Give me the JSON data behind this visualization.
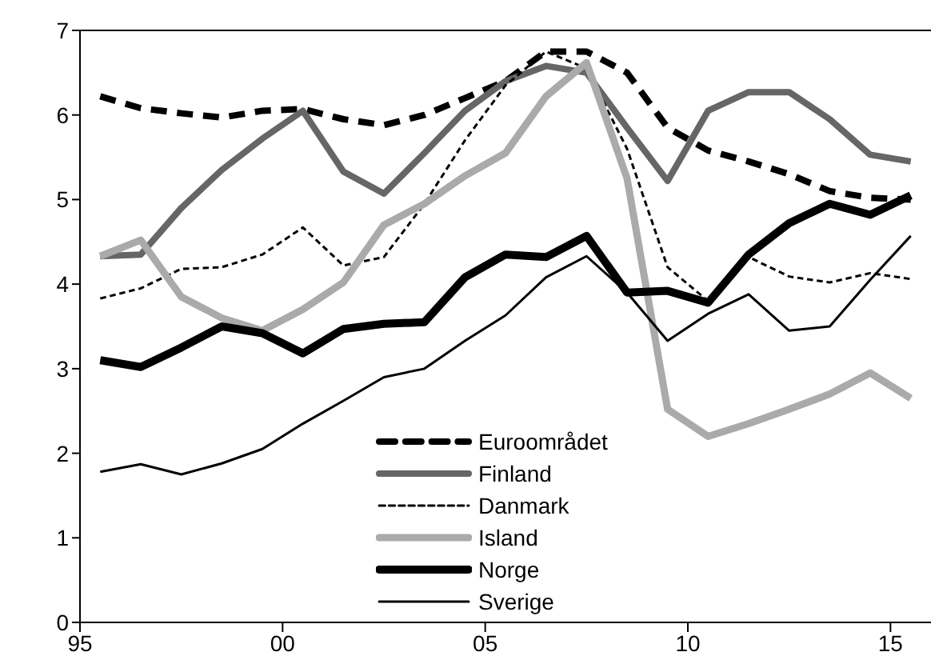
{
  "chart_data": {
    "type": "line",
    "x": [
      1995.5,
      1996.5,
      1997.5,
      1998.5,
      1999.5,
      2000.5,
      2001.5,
      2002.5,
      2003.5,
      2004.5,
      2005.5,
      2006.5,
      2007.5,
      2008.5,
      2009.5,
      2010.5,
      2011.5,
      2012.5,
      2013.5,
      2014.5,
      2015.5
    ],
    "series": [
      {
        "name": "Euroområdet",
        "color": "#000000",
        "line_style": "dashed",
        "values": [
          6.22,
          6.08,
          6.02,
          5.97,
          6.05,
          6.07,
          5.95,
          5.88,
          6.0,
          6.2,
          6.4,
          6.75,
          6.75,
          6.5,
          5.85,
          5.58,
          5.45,
          5.3,
          5.1,
          5.02,
          5.0
        ]
      },
      {
        "name": "Finland",
        "color": "#666666",
        "line_style": "solid",
        "values": [
          4.33,
          4.35,
          4.9,
          5.35,
          5.72,
          6.05,
          5.33,
          5.07,
          5.55,
          6.05,
          6.4,
          6.58,
          6.5,
          5.85,
          5.22,
          6.05,
          6.27,
          6.27,
          5.95,
          5.53,
          5.45
        ]
      },
      {
        "name": "Danmark",
        "color": "#000000",
        "line_style": "dashed",
        "values": [
          3.83,
          3.95,
          4.18,
          4.2,
          4.35,
          4.67,
          4.22,
          4.32,
          4.95,
          5.7,
          6.35,
          6.75,
          6.55,
          5.6,
          4.2,
          3.8,
          4.32,
          4.09,
          4.02,
          4.13,
          4.06
        ]
      },
      {
        "name": "Island",
        "color": "#aaaaaa",
        "line_style": "solid",
        "values": [
          4.33,
          4.52,
          3.85,
          3.6,
          3.45,
          3.7,
          4.02,
          4.7,
          4.95,
          5.28,
          5.55,
          6.22,
          6.62,
          5.25,
          2.52,
          2.2,
          2.35,
          2.52,
          2.7,
          2.95,
          2.65
        ]
      },
      {
        "name": "Norge",
        "color": "#000000",
        "line_style": "solid",
        "values": [
          3.1,
          3.02,
          3.25,
          3.5,
          3.42,
          3.18,
          3.47,
          3.53,
          3.55,
          4.08,
          4.35,
          4.32,
          4.57,
          3.9,
          3.92,
          3.78,
          4.35,
          4.72,
          4.95,
          4.82,
          5.05
        ]
      },
      {
        "name": "Sverige",
        "color": "#000000",
        "line_style": "solid",
        "values": [
          1.78,
          1.87,
          1.75,
          1.88,
          2.05,
          2.35,
          2.62,
          2.9,
          3.0,
          3.33,
          3.63,
          4.08,
          4.33,
          3.9,
          3.33,
          3.65,
          3.88,
          3.45,
          3.5,
          4.05,
          4.57
        ]
      }
    ],
    "xlim": [
      1995,
      2016
    ],
    "xticks": [
      {
        "value": 1995,
        "label": "95"
      },
      {
        "value": 2000,
        "label": "00"
      },
      {
        "value": 2005,
        "label": "05"
      },
      {
        "value": 2010,
        "label": "10"
      },
      {
        "value": 2015,
        "label": "15"
      }
    ],
    "ylim": [
      0,
      7
    ],
    "yticks": [
      0,
      1,
      2,
      3,
      4,
      5,
      6,
      7
    ],
    "grid": false,
    "legend": "bottom",
    "marker": "none"
  }
}
